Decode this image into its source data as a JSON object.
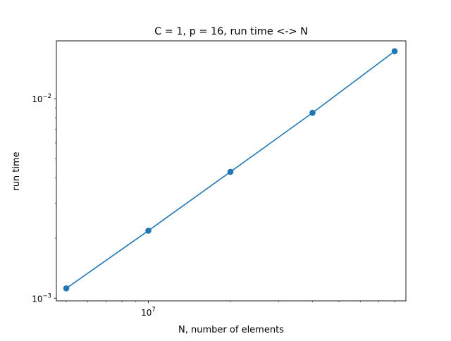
{
  "chart_data": {
    "type": "line",
    "title": "C = 1, p = 16, run time <-> N",
    "xlabel": "N, number of elements",
    "ylabel": "run time",
    "x_scale": "log",
    "y_scale": "log",
    "xlim": [
      4600000,
      88000000
    ],
    "ylim": [
      0.00097,
      0.0195
    ],
    "grid": false,
    "legend": "none",
    "x_tick_labels": [
      {
        "value": 10000000,
        "base": "10",
        "exponent": "7"
      }
    ],
    "y_tick_labels": [
      {
        "value": 0.001,
        "base": "10",
        "exponent": "−3"
      },
      {
        "value": 0.01,
        "base": "10",
        "exponent": "−2"
      }
    ],
    "series": [
      {
        "x": [
          5000000,
          10000000,
          20000000,
          40000000,
          80000000
        ],
        "y": [
          0.00112,
          0.00218,
          0.0043,
          0.0085,
          0.0173
        ],
        "color": "#1f77b4"
      }
    ]
  }
}
